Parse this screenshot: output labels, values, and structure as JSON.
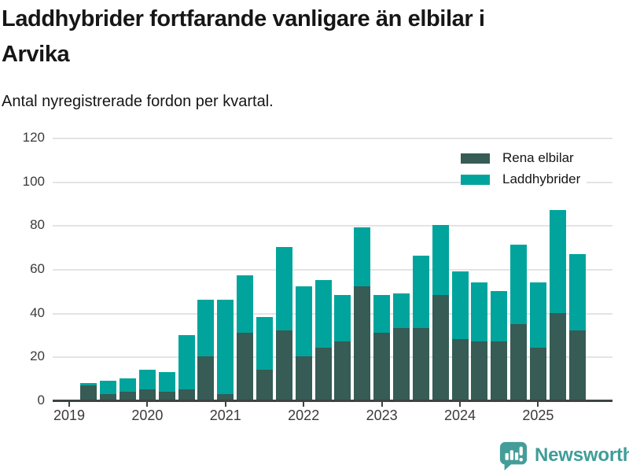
{
  "header": {
    "title_line1": "Laddhybrider fortfarande vanligare än elbilar i",
    "title_line2": "Arvika",
    "subtitle": "Antal nyregistrerade fordon per kvartal."
  },
  "chart_data": {
    "type": "bar",
    "stacked": true,
    "title": "Laddhybrider fortfarande vanligare än elbilar i Arvika",
    "subtitle": "Antal nyregistrerade fordon per kvartal.",
    "categories": [
      "2019-Q2",
      "2019-Q3",
      "2019-Q4",
      "2020-Q1",
      "2020-Q2",
      "2020-Q3",
      "2020-Q4",
      "2021-Q1",
      "2021-Q2",
      "2021-Q3",
      "2021-Q4",
      "2022-Q1",
      "2022-Q2",
      "2022-Q3",
      "2022-Q4",
      "2023-Q1",
      "2023-Q2",
      "2023-Q3",
      "2023-Q4",
      "2024-Q1",
      "2024-Q2",
      "2024-Q3",
      "2024-Q4",
      "2025-Q1",
      "2025-Q2",
      "2025-Q3"
    ],
    "series": [
      {
        "name": "Rena elbilar",
        "color": "#375b55",
        "values": [
          7,
          3,
          4,
          5,
          4,
          5,
          20,
          3,
          31,
          14,
          32,
          20,
          24,
          27,
          52,
          31,
          33,
          33,
          48,
          28,
          27,
          27,
          35,
          24,
          40,
          32
        ]
      },
      {
        "name": "Laddhybrider",
        "color": "#00a49c",
        "values": [
          1,
          6,
          6,
          9,
          9,
          25,
          26,
          43,
          26,
          24,
          38,
          32,
          31,
          21,
          27,
          17,
          16,
          33,
          32,
          31,
          27,
          23,
          36,
          30,
          47,
          35
        ]
      }
    ],
    "totals": [
      8,
      9,
      10,
      14,
      13,
      30,
      46,
      46,
      57,
      38,
      70,
      52,
      55,
      48,
      79,
      48,
      49,
      66,
      80,
      59,
      54,
      50,
      71,
      54,
      87,
      67
    ],
    "ylim": [
      0,
      120
    ],
    "yticks": [
      0,
      20,
      40,
      60,
      80,
      100,
      120
    ],
    "xticks": [
      "2019",
      "2020",
      "2021",
      "2022",
      "2023",
      "2024",
      "2025"
    ],
    "grid": "horizontal",
    "legend_position": "top-right"
  },
  "footer": {
    "brand": "Newsworthy",
    "brand_color": "#3f9d98",
    "logo_color": "#449d98"
  }
}
